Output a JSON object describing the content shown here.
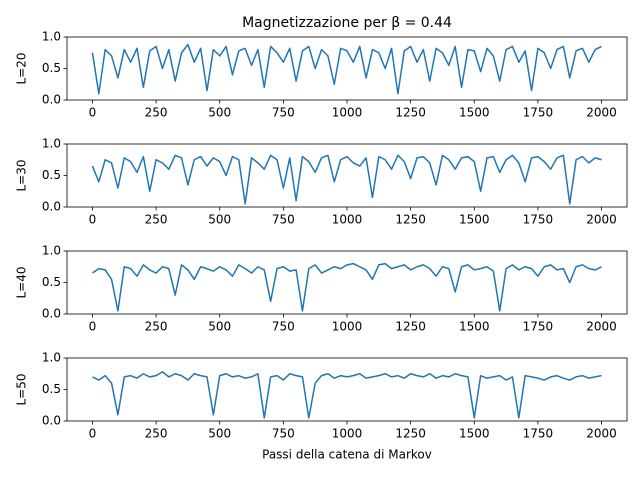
{
  "chart_data": [
    {
      "type": "line",
      "title": "Magnetizzazione per β = 0.44",
      "ylabel": "L=20",
      "color": "#1f77b4",
      "x": [
        0,
        25,
        50,
        75,
        100,
        125,
        150,
        175,
        200,
        225,
        250,
        275,
        300,
        325,
        350,
        375,
        400,
        425,
        450,
        475,
        500,
        525,
        550,
        575,
        600,
        625,
        650,
        675,
        700,
        725,
        750,
        775,
        800,
        825,
        850,
        875,
        900,
        925,
        950,
        975,
        1000,
        1025,
        1050,
        1075,
        1100,
        1125,
        1150,
        1175,
        1200,
        1225,
        1250,
        1275,
        1300,
        1325,
        1350,
        1375,
        1400,
        1425,
        1450,
        1475,
        1500,
        1525,
        1550,
        1575,
        1600,
        1625,
        1650,
        1675,
        1700,
        1725,
        1750,
        1775,
        1800,
        1825,
        1850,
        1875,
        1900,
        1925,
        1950,
        1975,
        2000
      ],
      "values": [
        0.75,
        0.1,
        0.8,
        0.7,
        0.35,
        0.8,
        0.6,
        0.82,
        0.2,
        0.78,
        0.85,
        0.5,
        0.8,
        0.3,
        0.75,
        0.88,
        0.6,
        0.82,
        0.15,
        0.8,
        0.7,
        0.85,
        0.4,
        0.78,
        0.82,
        0.55,
        0.8,
        0.2,
        0.85,
        0.75,
        0.6,
        0.82,
        0.3,
        0.78,
        0.85,
        0.5,
        0.8,
        0.7,
        0.25,
        0.82,
        0.78,
        0.6,
        0.85,
        0.35,
        0.8,
        0.75,
        0.5,
        0.82,
        0.1,
        0.78,
        0.85,
        0.6,
        0.8,
        0.3,
        0.82,
        0.75,
        0.55,
        0.85,
        0.2,
        0.8,
        0.78,
        0.45,
        0.82,
        0.7,
        0.3,
        0.8,
        0.85,
        0.6,
        0.78,
        0.15,
        0.82,
        0.75,
        0.5,
        0.8,
        0.85,
        0.35,
        0.78,
        0.82,
        0.6,
        0.8,
        0.85
      ],
      "xlim": [
        -100,
        2100
      ],
      "xticks": [
        0,
        250,
        500,
        750,
        1000,
        1250,
        1500,
        1750,
        2000
      ],
      "ylim": [
        0,
        1
      ],
      "yticks": [
        {
          "value": 0,
          "label": "0.0"
        },
        {
          "value": 0.5,
          "label": "0.5"
        },
        {
          "value": 1,
          "label": "1.0"
        }
      ]
    },
    {
      "type": "line",
      "ylabel": "L=30",
      "color": "#1f77b4",
      "x": [
        0,
        25,
        50,
        75,
        100,
        125,
        150,
        175,
        200,
        225,
        250,
        275,
        300,
        325,
        350,
        375,
        400,
        425,
        450,
        475,
        500,
        525,
        550,
        575,
        600,
        625,
        650,
        675,
        700,
        725,
        750,
        775,
        800,
        825,
        850,
        875,
        900,
        925,
        950,
        975,
        1000,
        1025,
        1050,
        1075,
        1100,
        1125,
        1150,
        1175,
        1200,
        1225,
        1250,
        1275,
        1300,
        1325,
        1350,
        1375,
        1400,
        1425,
        1450,
        1475,
        1500,
        1525,
        1550,
        1575,
        1600,
        1625,
        1650,
        1675,
        1700,
        1725,
        1750,
        1775,
        1800,
        1825,
        1850,
        1875,
        1900,
        1925,
        1950,
        1975,
        2000
      ],
      "values": [
        0.65,
        0.4,
        0.75,
        0.7,
        0.3,
        0.78,
        0.72,
        0.55,
        0.8,
        0.25,
        0.75,
        0.7,
        0.6,
        0.82,
        0.78,
        0.35,
        0.75,
        0.8,
        0.65,
        0.78,
        0.72,
        0.5,
        0.8,
        0.75,
        0.05,
        0.78,
        0.7,
        0.6,
        0.82,
        0.75,
        0.3,
        0.78,
        0.1,
        0.8,
        0.72,
        0.55,
        0.78,
        0.82,
        0.4,
        0.75,
        0.8,
        0.7,
        0.65,
        0.78,
        0.15,
        0.8,
        0.75,
        0.6,
        0.82,
        0.72,
        0.45,
        0.78,
        0.8,
        0.7,
        0.35,
        0.82,
        0.75,
        0.6,
        0.78,
        0.8,
        0.72,
        0.25,
        0.78,
        0.8,
        0.55,
        0.75,
        0.82,
        0.7,
        0.4,
        0.78,
        0.8,
        0.72,
        0.6,
        0.78,
        0.82,
        0.05,
        0.75,
        0.8,
        0.7,
        0.78,
        0.75
      ],
      "xlim": [
        -100,
        2100
      ],
      "xticks": [
        0,
        250,
        500,
        750,
        1000,
        1250,
        1500,
        1750,
        2000
      ],
      "ylim": [
        0,
        1
      ],
      "yticks": [
        {
          "value": 0,
          "label": "0.0"
        },
        {
          "value": 0.5,
          "label": "0.5"
        },
        {
          "value": 1,
          "label": "1.0"
        }
      ]
    },
    {
      "type": "line",
      "ylabel": "L=40",
      "color": "#1f77b4",
      "x": [
        0,
        25,
        50,
        75,
        100,
        125,
        150,
        175,
        200,
        225,
        250,
        275,
        300,
        325,
        350,
        375,
        400,
        425,
        450,
        475,
        500,
        525,
        550,
        575,
        600,
        625,
        650,
        675,
        700,
        725,
        750,
        775,
        800,
        825,
        850,
        875,
        900,
        925,
        950,
        975,
        1000,
        1025,
        1050,
        1075,
        1100,
        1125,
        1150,
        1175,
        1200,
        1225,
        1250,
        1275,
        1300,
        1325,
        1350,
        1375,
        1400,
        1425,
        1450,
        1475,
        1500,
        1525,
        1550,
        1575,
        1600,
        1625,
        1650,
        1675,
        1700,
        1725,
        1750,
        1775,
        1800,
        1825,
        1850,
        1875,
        1900,
        1925,
        1950,
        1975,
        2000
      ],
      "values": [
        0.65,
        0.72,
        0.7,
        0.55,
        0.05,
        0.75,
        0.72,
        0.6,
        0.78,
        0.7,
        0.65,
        0.75,
        0.72,
        0.3,
        0.78,
        0.7,
        0.55,
        0.75,
        0.72,
        0.68,
        0.75,
        0.7,
        0.6,
        0.78,
        0.72,
        0.65,
        0.75,
        0.7,
        0.2,
        0.72,
        0.75,
        0.68,
        0.7,
        0.05,
        0.72,
        0.78,
        0.65,
        0.7,
        0.75,
        0.72,
        0.78,
        0.8,
        0.75,
        0.7,
        0.55,
        0.78,
        0.8,
        0.72,
        0.75,
        0.78,
        0.7,
        0.75,
        0.78,
        0.72,
        0.6,
        0.75,
        0.72,
        0.35,
        0.75,
        0.78,
        0.7,
        0.72,
        0.75,
        0.68,
        0.05,
        0.72,
        0.78,
        0.7,
        0.75,
        0.72,
        0.6,
        0.75,
        0.78,
        0.7,
        0.72,
        0.5,
        0.75,
        0.78,
        0.72,
        0.7,
        0.75
      ],
      "xlim": [
        -100,
        2100
      ],
      "xticks": [
        0,
        250,
        500,
        750,
        1000,
        1250,
        1500,
        1750,
        2000
      ],
      "ylim": [
        0,
        1
      ],
      "yticks": [
        {
          "value": 0,
          "label": "0.0"
        },
        {
          "value": 0.5,
          "label": "0.5"
        },
        {
          "value": 1,
          "label": "1.0"
        }
      ]
    },
    {
      "type": "line",
      "ylabel": "L=50",
      "xlabel": "Passi della catena di Markov",
      "color": "#1f77b4",
      "x": [
        0,
        25,
        50,
        75,
        100,
        125,
        150,
        175,
        200,
        225,
        250,
        275,
        300,
        325,
        350,
        375,
        400,
        425,
        450,
        475,
        500,
        525,
        550,
        575,
        600,
        625,
        650,
        675,
        700,
        725,
        750,
        775,
        800,
        825,
        850,
        875,
        900,
        925,
        950,
        975,
        1000,
        1025,
        1050,
        1075,
        1100,
        1125,
        1150,
        1175,
        1200,
        1225,
        1250,
        1275,
        1300,
        1325,
        1350,
        1375,
        1400,
        1425,
        1450,
        1475,
        1500,
        1525,
        1550,
        1575,
        1600,
        1625,
        1650,
        1675,
        1700,
        1725,
        1750,
        1775,
        1800,
        1825,
        1850,
        1875,
        1900,
        1925,
        1950,
        1975,
        2000
      ],
      "values": [
        0.7,
        0.65,
        0.72,
        0.6,
        0.1,
        0.7,
        0.72,
        0.68,
        0.75,
        0.7,
        0.72,
        0.78,
        0.7,
        0.75,
        0.72,
        0.65,
        0.75,
        0.72,
        0.7,
        0.1,
        0.72,
        0.75,
        0.7,
        0.72,
        0.68,
        0.7,
        0.75,
        0.05,
        0.7,
        0.72,
        0.65,
        0.75,
        0.72,
        0.7,
        0.05,
        0.6,
        0.72,
        0.75,
        0.68,
        0.72,
        0.7,
        0.72,
        0.75,
        0.68,
        0.7,
        0.72,
        0.75,
        0.7,
        0.72,
        0.68,
        0.75,
        0.72,
        0.7,
        0.75,
        0.68,
        0.72,
        0.7,
        0.75,
        0.72,
        0.7,
        0.05,
        0.72,
        0.68,
        0.7,
        0.72,
        0.65,
        0.7,
        0.05,
        0.72,
        0.7,
        0.68,
        0.65,
        0.7,
        0.72,
        0.68,
        0.65,
        0.7,
        0.72,
        0.68,
        0.7,
        0.72
      ],
      "xlim": [
        -100,
        2100
      ],
      "xticks": [
        0,
        250,
        500,
        750,
        1000,
        1250,
        1500,
        1750,
        2000
      ],
      "ylim": [
        0,
        1
      ],
      "yticks": [
        {
          "value": 0,
          "label": "0.0"
        },
        {
          "value": 0.5,
          "label": "0.5"
        },
        {
          "value": 1,
          "label": "1.0"
        }
      ]
    }
  ]
}
